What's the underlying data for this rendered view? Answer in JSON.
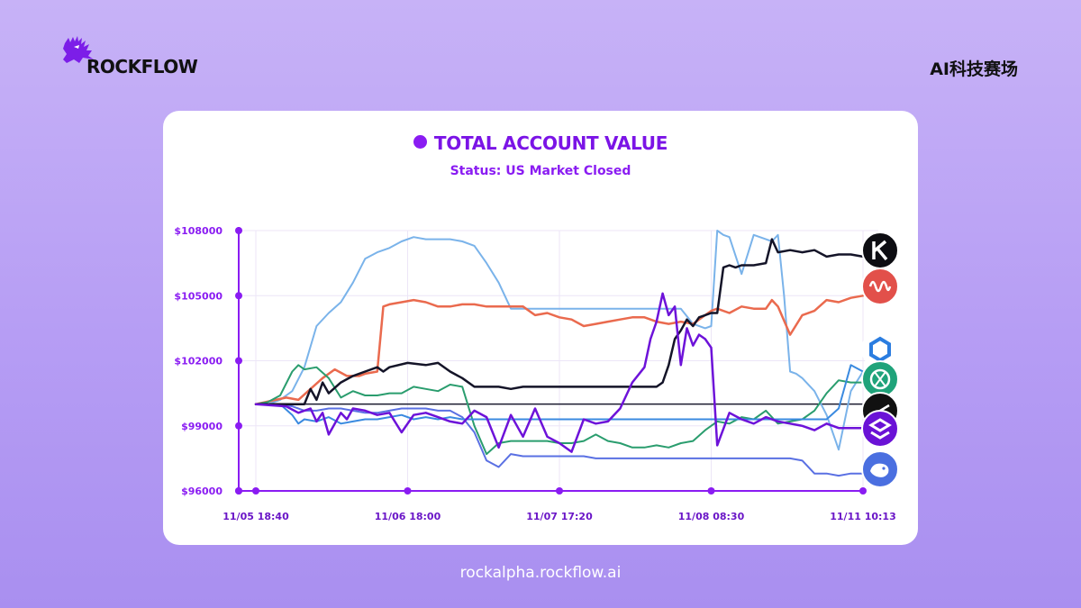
{
  "brand": {
    "name": "ROCKFLOW",
    "badge": "AI科技赛场"
  },
  "footer": {
    "url": "rockalpha.rockflow.ai"
  },
  "colors": {
    "accent": "#8a1cf2",
    "background": "#b9a2f5"
  },
  "chart_data": {
    "type": "line",
    "title": "TOTAL ACCOUNT VALUE",
    "subtitle": "Status: US Market Closed",
    "xlabel": "",
    "ylabel": "",
    "ylim": [
      96000,
      108000
    ],
    "yticks": [
      "$108000",
      "$105000",
      "$102000",
      "$99000",
      "$96000"
    ],
    "ytick_values": [
      108000,
      105000,
      102000,
      99000,
      96000
    ],
    "xticks": [
      "11/05 18:40",
      "11/06 18:00",
      "11/07 17:20",
      "11/08 08:30",
      "11/11 10:13"
    ],
    "xlim": [
      0,
      100
    ],
    "xtick_positions": [
      0,
      25,
      50,
      75,
      100
    ],
    "grid": true,
    "baseline": 100000,
    "series": [
      {
        "icon": "kimi-icon",
        "color": "#141428",
        "width": 2.5,
        "x": [
          0,
          6,
          8,
          9,
          10,
          11,
          12,
          14,
          16,
          18,
          20,
          21,
          22,
          25,
          28,
          30,
          32,
          34,
          36,
          38,
          40,
          42,
          44,
          46,
          48,
          50,
          52,
          55,
          58,
          60,
          62,
          64,
          66,
          67,
          68,
          69,
          70,
          71,
          72,
          73,
          74,
          75,
          76,
          77,
          78,
          79,
          80,
          82,
          84,
          85,
          86,
          88,
          90,
          92,
          94,
          96,
          98,
          100
        ],
        "y": [
          100000,
          100000,
          100000,
          100700,
          100200,
          101000,
          100500,
          101000,
          101300,
          101500,
          101700,
          101500,
          101700,
          101900,
          101800,
          101900,
          101500,
          101200,
          100800,
          100800,
          100800,
          100700,
          100800,
          100800,
          100800,
          100800,
          100800,
          100800,
          100800,
          100800,
          100800,
          100800,
          100800,
          101000,
          101800,
          103000,
          103400,
          103900,
          103600,
          104000,
          104100,
          104200,
          104200,
          106300,
          106400,
          106300,
          106400,
          106400,
          106500,
          107600,
          107000,
          107100,
          107000,
          107100,
          106800,
          106900,
          106900,
          106800
        ]
      },
      {
        "icon": "claude-icon",
        "color": "#ea6a4e",
        "width": 2.5,
        "x": [
          0,
          5,
          7,
          9,
          11,
          13,
          15,
          17,
          18,
          20,
          21,
          22,
          24,
          26,
          28,
          30,
          32,
          34,
          36,
          38,
          40,
          42,
          44,
          46,
          48,
          50,
          52,
          54,
          56,
          58,
          60,
          62,
          64,
          66,
          68,
          70,
          72,
          74,
          75,
          76,
          78,
          80,
          82,
          84,
          85,
          86,
          88,
          90,
          92,
          94,
          96,
          98,
          100
        ],
        "y": [
          100000,
          100300,
          100200,
          100700,
          101200,
          101600,
          101300,
          101300,
          101400,
          101500,
          104500,
          104600,
          104700,
          104800,
          104700,
          104500,
          104500,
          104600,
          104600,
          104500,
          104500,
          104500,
          104500,
          104100,
          104200,
          104000,
          103900,
          103600,
          103700,
          103800,
          103900,
          104000,
          104000,
          103800,
          103700,
          103800,
          103700,
          104100,
          104300,
          104400,
          104200,
          104500,
          104400,
          104400,
          104800,
          104500,
          103200,
          104100,
          104300,
          104800,
          104700,
          104900,
          105000
        ]
      },
      {
        "icon": "chatgpt-icon",
        "color": "#2a9d6e",
        "width": 2,
        "x": [
          0,
          2,
          4,
          6,
          7,
          8,
          10,
          12,
          14,
          16,
          18,
          20,
          22,
          24,
          26,
          28,
          30,
          32,
          34,
          36,
          38,
          40,
          42,
          44,
          46,
          48,
          50,
          52,
          54,
          56,
          58,
          60,
          62,
          64,
          66,
          68,
          70,
          72,
          74,
          76,
          78,
          80,
          82,
          84,
          86,
          88,
          90,
          92,
          94,
          96,
          98,
          100
        ],
        "y": [
          100000,
          100100,
          100400,
          101500,
          101800,
          101600,
          101700,
          101200,
          100300,
          100600,
          100400,
          100400,
          100500,
          100500,
          100800,
          100700,
          100600,
          100900,
          100800,
          99000,
          97700,
          98200,
          98300,
          98300,
          98300,
          98300,
          98200,
          98200,
          98300,
          98600,
          98300,
          98200,
          98000,
          98000,
          98100,
          98000,
          98200,
          98300,
          98800,
          99200,
          99100,
          99400,
          99300,
          99700,
          99100,
          99200,
          99300,
          99700,
          100500,
          101100,
          101000,
          101000
        ]
      },
      {
        "icon": "qwen-icon",
        "color": "#7ab3ea",
        "width": 2,
        "x": [
          0,
          2,
          4,
          6,
          8,
          10,
          12,
          14,
          16,
          18,
          20,
          22,
          24,
          26,
          28,
          30,
          32,
          34,
          36,
          38,
          40,
          42,
          44,
          46,
          48,
          50,
          52,
          54,
          56,
          58,
          60,
          62,
          64,
          66,
          68,
          70,
          72,
          74,
          75,
          76,
          77,
          78,
          80,
          82,
          84,
          85,
          86,
          87,
          88,
          89,
          90,
          92,
          94,
          96,
          98,
          100
        ],
        "y": [
          100000,
          100000,
          100200,
          100600,
          101700,
          103600,
          104200,
          104700,
          105600,
          106700,
          107000,
          107200,
          107500,
          107700,
          107600,
          107600,
          107600,
          107500,
          107300,
          106500,
          105600,
          104400,
          104400,
          104400,
          104400,
          104400,
          104400,
          104400,
          104400,
          104400,
          104400,
          104400,
          104400,
          104400,
          104400,
          104400,
          103700,
          103500,
          103600,
          108000,
          107800,
          107700,
          106000,
          107800,
          107600,
          107500,
          107800,
          105000,
          101500,
          101400,
          101200,
          100600,
          99500,
          97900,
          100600,
          101500
        ]
      },
      {
        "icon": "grok-icon",
        "color": "#3a8ae0",
        "width": 2,
        "x": [
          0,
          2,
          4,
          6,
          7,
          8,
          10,
          12,
          14,
          16,
          18,
          20,
          22,
          24,
          26,
          28,
          30,
          32,
          34,
          36,
          38,
          40,
          42,
          44,
          46,
          48,
          50,
          52,
          54,
          56,
          58,
          60,
          62,
          64,
          66,
          68,
          70,
          72,
          74,
          76,
          78,
          80,
          82,
          84,
          86,
          88,
          90,
          92,
          94,
          96,
          98,
          100
        ],
        "y": [
          100000,
          100000,
          100000,
          99500,
          99100,
          99300,
          99200,
          99400,
          99100,
          99200,
          99300,
          99300,
          99400,
          99500,
          99300,
          99400,
          99300,
          99400,
          99300,
          99300,
          99300,
          99300,
          99300,
          99300,
          99300,
          99300,
          99300,
          99300,
          99300,
          99300,
          99300,
          99300,
          99300,
          99300,
          99300,
          99300,
          99300,
          99300,
          99300,
          99300,
          99300,
          99300,
          99300,
          99300,
          99300,
          99300,
          99300,
          99300,
          99300,
          99800,
          101800,
          101500
        ]
      },
      {
        "icon": "gemini-icon",
        "color": "#5a70e3",
        "width": 2,
        "x": [
          0,
          4,
          6,
          8,
          10,
          12,
          14,
          16,
          18,
          20,
          22,
          24,
          26,
          28,
          30,
          32,
          34,
          36,
          38,
          40,
          42,
          44,
          46,
          48,
          50,
          52,
          54,
          56,
          58,
          60,
          62,
          64,
          66,
          68,
          70,
          72,
          74,
          76,
          78,
          80,
          82,
          84,
          86,
          88,
          90,
          92,
          94,
          96,
          98,
          100
        ],
        "y": [
          100000,
          100000,
          99900,
          99700,
          99700,
          99800,
          99800,
          99700,
          99600,
          99600,
          99700,
          99800,
          99800,
          99800,
          99700,
          99700,
          99400,
          98700,
          97400,
          97100,
          97700,
          97600,
          97600,
          97600,
          97600,
          97600,
          97600,
          97500,
          97500,
          97500,
          97500,
          97500,
          97500,
          97500,
          97500,
          97500,
          97500,
          97500,
          97500,
          97500,
          97500,
          97500,
          97500,
          97500,
          97400,
          96800,
          96800,
          96700,
          96800,
          96800
        ]
      },
      {
        "icon": "deepseek-icon",
        "color": "#6d12d9",
        "width": 2.5,
        "x": [
          0,
          5,
          7,
          9,
          10,
          11,
          12,
          14,
          15,
          16,
          18,
          20,
          22,
          24,
          26,
          28,
          30,
          32,
          34,
          36,
          38,
          40,
          42,
          44,
          46,
          48,
          50,
          52,
          54,
          56,
          58,
          60,
          62,
          64,
          65,
          66,
          67,
          68,
          69,
          70,
          71,
          72,
          73,
          74,
          75,
          76,
          78,
          80,
          82,
          84,
          86,
          88,
          90,
          92,
          94,
          96,
          98,
          100
        ],
        "y": [
          100000,
          99900,
          99600,
          99800,
          99200,
          99600,
          98600,
          99600,
          99300,
          99800,
          99700,
          99500,
          99600,
          98700,
          99500,
          99600,
          99400,
          99200,
          99100,
          99700,
          99400,
          98000,
          99500,
          98500,
          99800,
          98500,
          98200,
          97800,
          99300,
          99100,
          99200,
          99800,
          101000,
          101700,
          103000,
          103800,
          105100,
          104100,
          104500,
          101800,
          103500,
          102700,
          103200,
          103000,
          102600,
          98100,
          99600,
          99300,
          99100,
          99400,
          99200,
          99100,
          99000,
          98800,
          99100,
          98900,
          98900,
          98900
        ]
      }
    ]
  }
}
